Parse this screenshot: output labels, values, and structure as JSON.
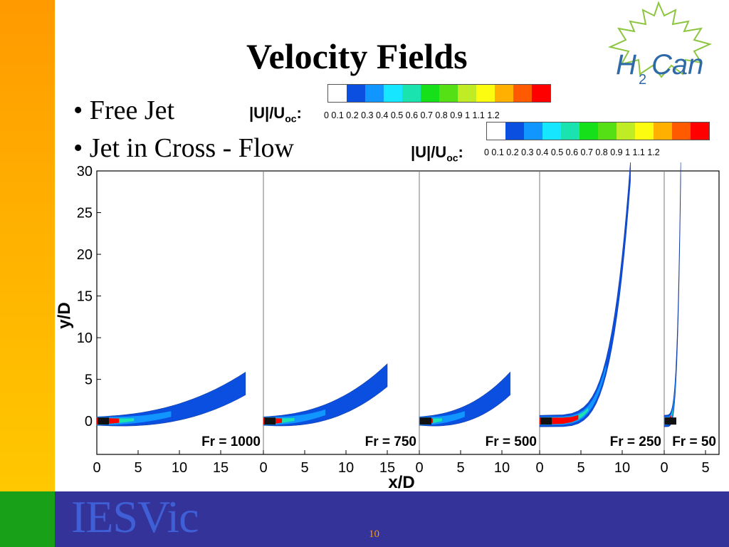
{
  "slide": {
    "title": "Velocity Fields",
    "bullets": [
      "• Free Jet",
      "• Jet in Cross - Flow"
    ],
    "page_number": "10",
    "footer_logo": "IESVic",
    "logo_text": "H2Can"
  },
  "colorbars": [
    {
      "label_main": "|U|/U",
      "label_sub": "oc",
      "label_colon": ":",
      "ticks": "0   0.1 0.2 0.3 0.4 0.5 0.6 0.7 0.8 0.9  1   1.1 1.2"
    },
    {
      "label_main": "|U|/U",
      "label_sub": "oc",
      "label_colon": ":",
      "ticks": "0   0.1 0.2 0.3 0.4 0.5 0.6 0.7 0.8 0.9  1   1.1 1.2"
    }
  ],
  "colorbar_colors": [
    "#ffffff",
    "#0a4fe0",
    "#1196ff",
    "#16e6ff",
    "#1be3b0",
    "#15e01a",
    "#55e015",
    "#c0ec25",
    "#fcfc10",
    "#ffb000",
    "#ff5a00",
    "#ff0000"
  ],
  "chart_data": {
    "type": "heatmap",
    "colorbar_ticks": [
      0,
      0.1,
      0.2,
      0.3,
      0.4,
      0.5,
      0.6,
      0.7,
      0.8,
      0.9,
      1,
      1.1,
      1.2
    ],
    "ylabel": "y/D",
    "xlabel": "x/D",
    "ylim": [
      -4,
      30
    ],
    "yticks": [
      "0",
      "5",
      "10",
      "15",
      "20",
      "25",
      "30"
    ],
    "panels": [
      {
        "label": "Fr = 1000",
        "xticks": [
          "0",
          "5",
          "10",
          "15"
        ],
        "jet_trajectory_end": [
          18,
          4.5
        ]
      },
      {
        "label": "Fr = 750",
        "xticks": [
          "0",
          "5",
          "10",
          "15"
        ],
        "jet_trajectory_end": [
          15,
          5.5
        ]
      },
      {
        "label": "Fr = 500",
        "xticks": [
          "0",
          "5",
          "10"
        ],
        "jet_trajectory_end": [
          11,
          4.5
        ]
      },
      {
        "label": "Fr = 250",
        "xticks": [
          "0",
          "5",
          "10"
        ],
        "jet_trajectory_end": [
          11,
          30
        ]
      },
      {
        "label": "Fr = 50",
        "xticks": [
          "0",
          "5"
        ],
        "jet_trajectory_end": [
          2,
          30
        ]
      }
    ]
  }
}
